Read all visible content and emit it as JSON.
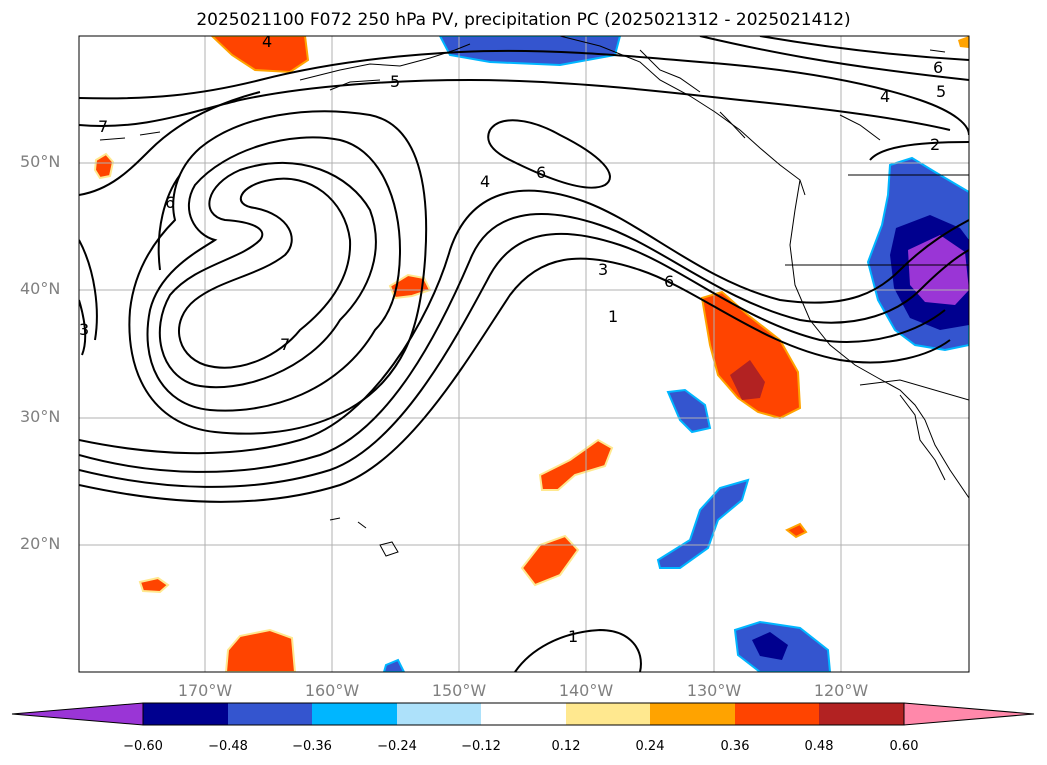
{
  "title": "2025021100 F072 250 hPa PV, precipitation PC (2025021312 - 2025021412)",
  "lat_labels": [
    "50°N",
    "40°N",
    "30°N",
    "20°N"
  ],
  "lon_labels": [
    "170°W",
    "160°W",
    "150°W",
    "140°W",
    "130°W",
    "120°W"
  ],
  "colorbar": {
    "ticks": [
      "−0.60",
      "−0.48",
      "−0.36",
      "−0.24",
      "−0.12",
      "0.12",
      "0.24",
      "0.36",
      "0.48",
      "0.60"
    ],
    "colors": [
      "#9a35d6",
      "#00008f",
      "#3455cf",
      "#00b6ff",
      "#ade1fa",
      "#ffffff",
      "#ffe88f",
      "#ffa300",
      "#ff4400",
      "#b22222",
      "#ff88aa"
    ]
  },
  "contour_labels": [
    "4",
    "5",
    "6",
    "4",
    "5",
    "2",
    "7",
    "6",
    "4",
    "6",
    "3",
    "6",
    "1",
    "7",
    "3",
    "1"
  ],
  "colors": {
    "frame": "#000000",
    "grid": "#b0b0b0",
    "axis_text": "#808080"
  }
}
